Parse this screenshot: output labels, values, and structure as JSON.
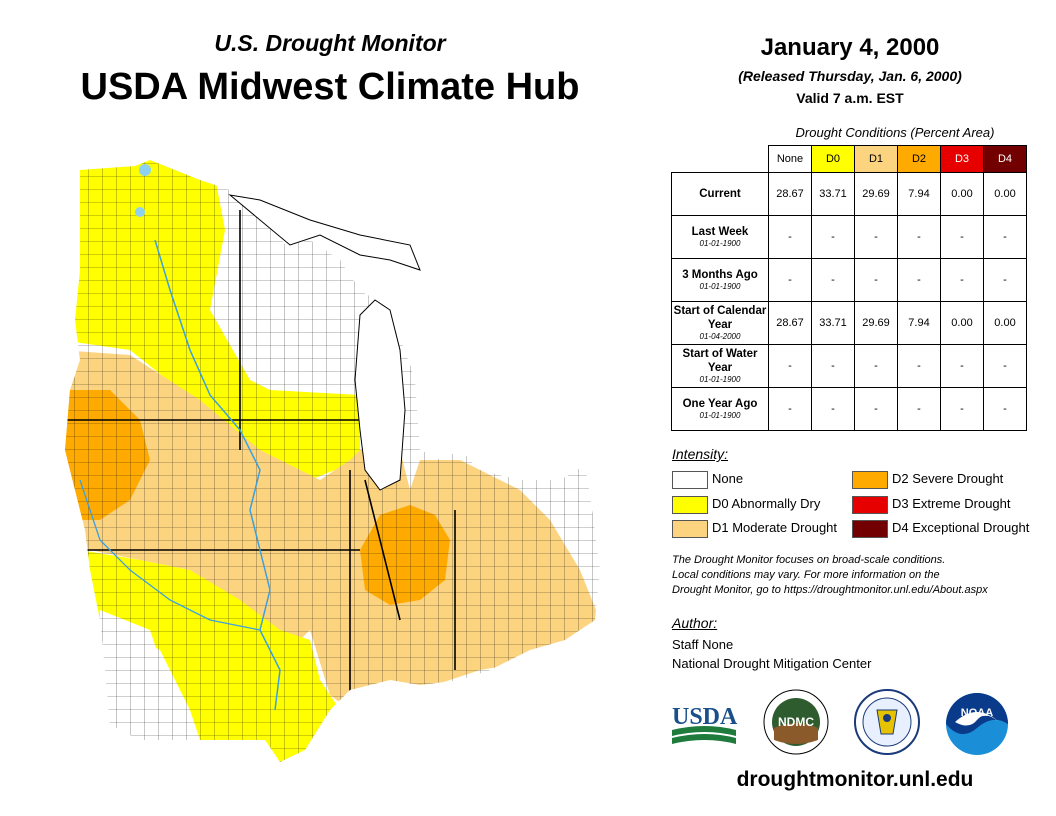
{
  "header": {
    "subtitle": "U.S. Drought Monitor",
    "title": "USDA Midwest Climate Hub",
    "date": "January 4, 2000",
    "released": "(Released Thursday, Jan. 6, 2000)",
    "valid": "Valid 7 a.m. EST"
  },
  "table": {
    "caption": "Drought Conditions (Percent Area)",
    "columns": [
      {
        "label": "None",
        "color": "#ffffff",
        "text": "#000000"
      },
      {
        "label": "D0",
        "color": "#ffff00",
        "text": "#000000"
      },
      {
        "label": "D1",
        "color": "#fcd37f",
        "text": "#000000"
      },
      {
        "label": "D2",
        "color": "#ffaa00",
        "text": "#000000"
      },
      {
        "label": "D3",
        "color": "#e60000",
        "text": "#ffffff"
      },
      {
        "label": "D4",
        "color": "#730000",
        "text": "#ffffff"
      }
    ],
    "rows": [
      {
        "label": "Current",
        "date": "",
        "values": [
          "28.67",
          "33.71",
          "29.69",
          "7.94",
          "0.00",
          "0.00"
        ]
      },
      {
        "label": "Last Week",
        "date": "01-01-1900",
        "values": [
          "-",
          "-",
          "-",
          "-",
          "-",
          "-"
        ]
      },
      {
        "label": "3 Months Ago",
        "date": "01-01-1900",
        "values": [
          "-",
          "-",
          "-",
          "-",
          "-",
          "-"
        ]
      },
      {
        "label": "Start of Calendar Year",
        "date": "01-04-2000",
        "values": [
          "28.67",
          "33.71",
          "29.69",
          "7.94",
          "0.00",
          "0.00"
        ]
      },
      {
        "label": "Start of Water Year",
        "date": "01-01-1900",
        "values": [
          "-",
          "-",
          "-",
          "-",
          "-",
          "-"
        ]
      },
      {
        "label": "One Year Ago",
        "date": "01-01-1900",
        "values": [
          "-",
          "-",
          "-",
          "-",
          "-",
          "-"
        ]
      }
    ]
  },
  "legend": {
    "title": "Intensity:",
    "items": [
      {
        "label": "None",
        "color": "#ffffff"
      },
      {
        "label": "D0 Abnormally Dry",
        "color": "#ffff00"
      },
      {
        "label": "D1 Moderate Drought",
        "color": "#fcd37f"
      },
      {
        "label": "D2 Severe Drought",
        "color": "#ffaa00"
      },
      {
        "label": "D3 Extreme Drought",
        "color": "#e60000"
      },
      {
        "label": "D4 Exceptional Drought",
        "color": "#730000"
      }
    ]
  },
  "note": {
    "line1": "The Drought Monitor focuses on broad-scale conditions.",
    "line2": "Local conditions may vary. For more information on the",
    "line3": "Drought Monitor, go to https://droughtmonitor.unl.edu/About.aspx"
  },
  "author": {
    "label": "Author:",
    "name": "Staff None",
    "org": "National Drought Mitigation Center"
  },
  "logos": {
    "usda": "USDA",
    "ndmc": "NDMC",
    "noaa": "NOAA"
  },
  "footer": {
    "url": "droughtmonitor.unl.edu"
  },
  "colors": {
    "water": "#8cd2f0",
    "county_lines": "#000000",
    "rivers": "#3aa0e0"
  }
}
